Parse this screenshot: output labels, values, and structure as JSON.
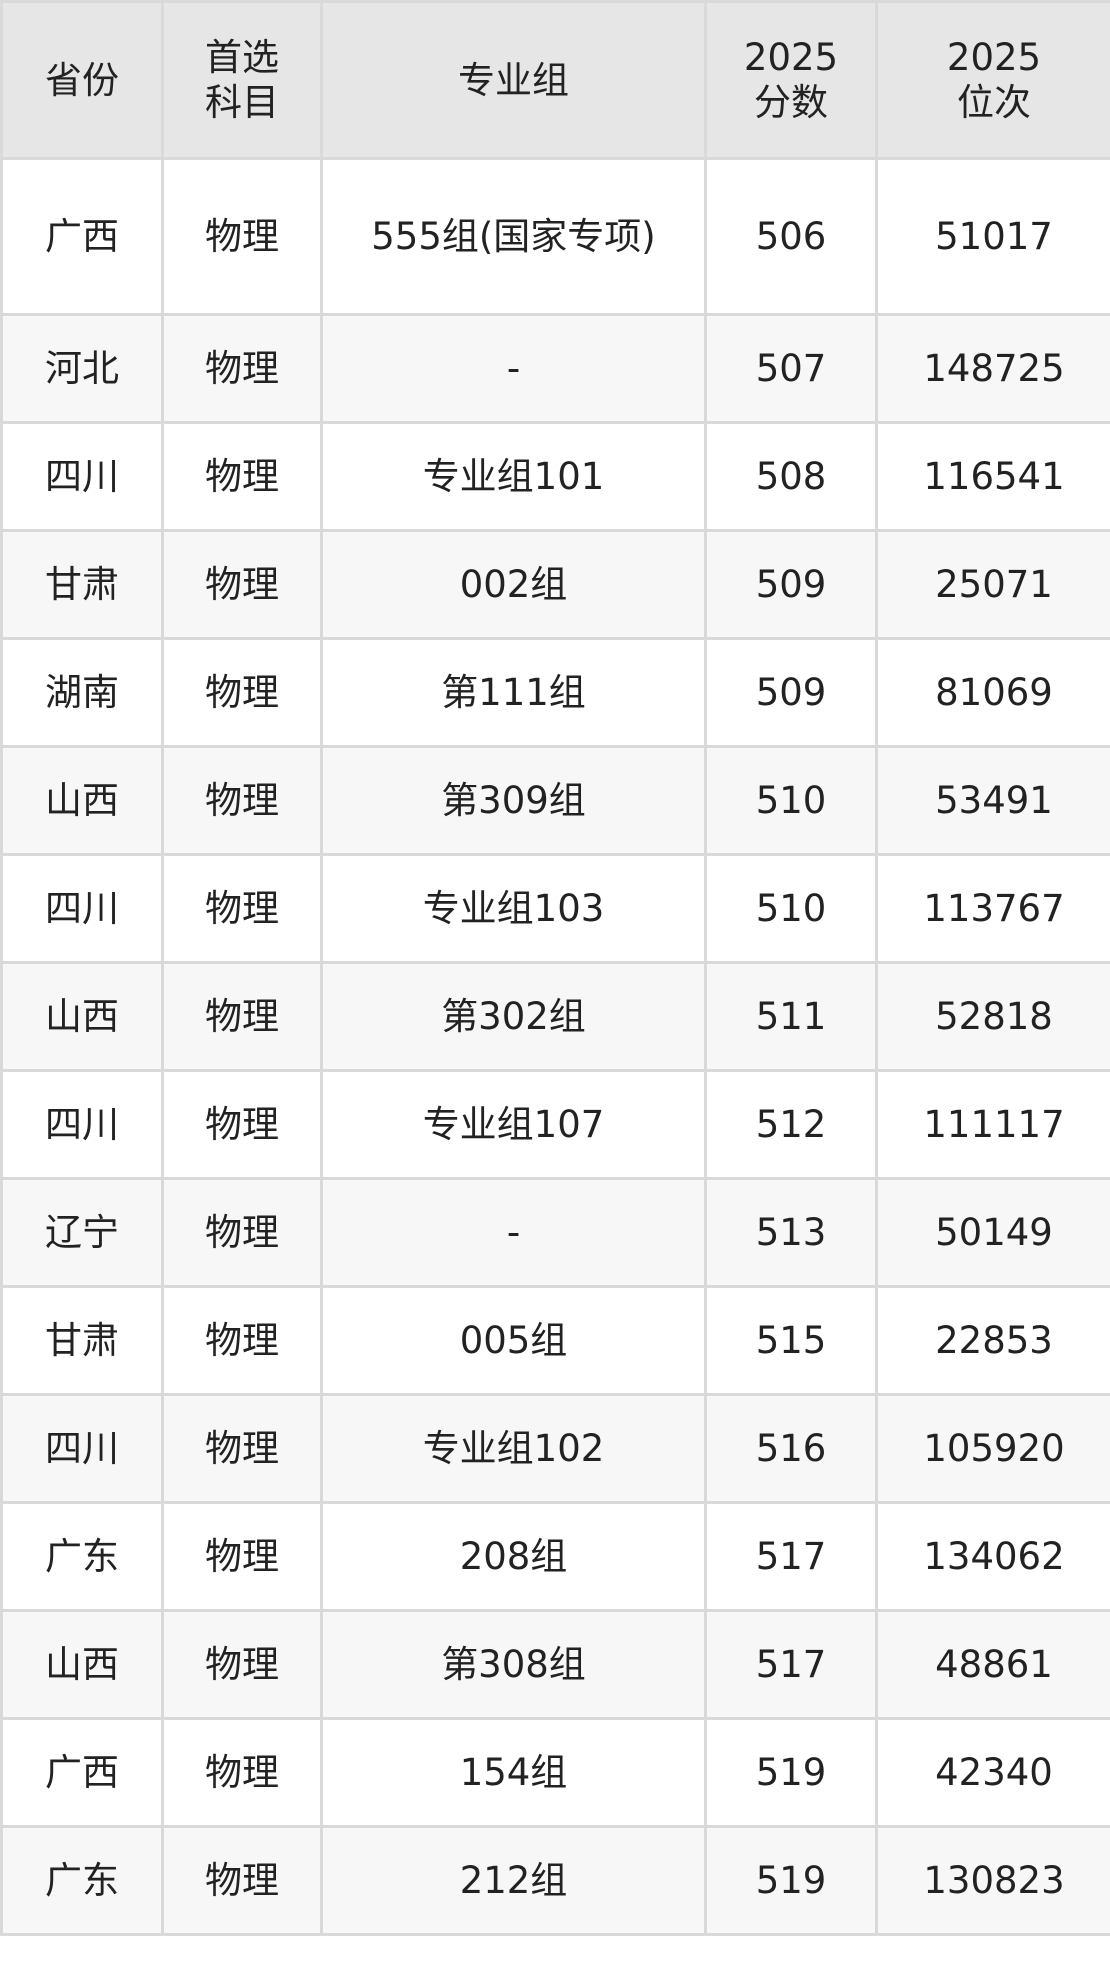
{
  "table": {
    "headers": [
      "省份",
      "首选\n科目",
      "专业组",
      "2025\n分数",
      "2025\n位次"
    ],
    "rows": [
      [
        "广西",
        "物理",
        "555组(国家专项)",
        "506",
        "51017"
      ],
      [
        "河北",
        "物理",
        "-",
        "507",
        "148725"
      ],
      [
        "四川",
        "物理",
        "专业组101",
        "508",
        "116541"
      ],
      [
        "甘肃",
        "物理",
        "002组",
        "509",
        "25071"
      ],
      [
        "湖南",
        "物理",
        "第111组",
        "509",
        "81069"
      ],
      [
        "山西",
        "物理",
        "第309组",
        "510",
        "53491"
      ],
      [
        "四川",
        "物理",
        "专业组103",
        "510",
        "113767"
      ],
      [
        "山西",
        "物理",
        "第302组",
        "511",
        "52818"
      ],
      [
        "四川",
        "物理",
        "专业组107",
        "512",
        "111117"
      ],
      [
        "辽宁",
        "物理",
        "-",
        "513",
        "50149"
      ],
      [
        "甘肃",
        "物理",
        "005组",
        "515",
        "22853"
      ],
      [
        "四川",
        "物理",
        "专业组102",
        "516",
        "105920"
      ],
      [
        "广东",
        "物理",
        "208组",
        "517",
        "134062"
      ],
      [
        "山西",
        "物理",
        "第308组",
        "517",
        "48861"
      ],
      [
        "广西",
        "物理",
        "154组",
        "519",
        "42340"
      ],
      [
        "广东",
        "物理",
        "212组",
        "519",
        "130823"
      ]
    ]
  }
}
